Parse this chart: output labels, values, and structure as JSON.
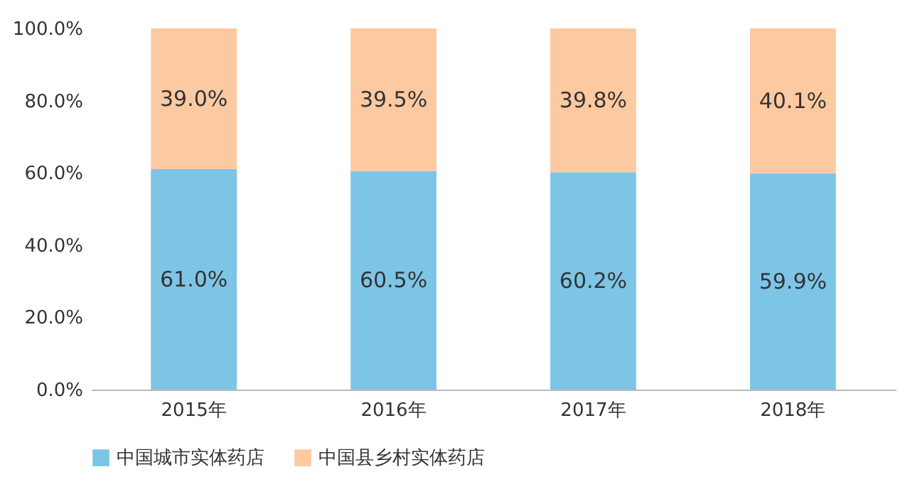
{
  "chart_data": {
    "type": "bar",
    "stacked": true,
    "categories": [
      "2015年",
      "2016年",
      "2017年",
      "2018年"
    ],
    "series": [
      {
        "name": "中国城市实体药店",
        "color": "#7dc5e6",
        "values": [
          61.0,
          60.5,
          60.2,
          59.9
        ],
        "value_labels": [
          "61.0%",
          "60.5%",
          "60.2%",
          "59.9%"
        ]
      },
      {
        "name": "中国县乡村实体药店",
        "color": "#fdc9a1",
        "values": [
          39.0,
          39.5,
          39.8,
          40.1
        ],
        "value_labels": [
          "39.0%",
          "39.5%",
          "39.8%",
          "40.1%"
        ]
      }
    ],
    "ylim": [
      0,
      100
    ],
    "yticks": [
      {
        "value": 0,
        "label": "0.0%"
      },
      {
        "value": 20,
        "label": "20.0%"
      },
      {
        "value": 40,
        "label": "40.0%"
      },
      {
        "value": 60,
        "label": "60.0%"
      },
      {
        "value": 80,
        "label": "80.0%"
      },
      {
        "value": 100,
        "label": "100.0%"
      }
    ],
    "legend": "bottom",
    "grid": false
  }
}
